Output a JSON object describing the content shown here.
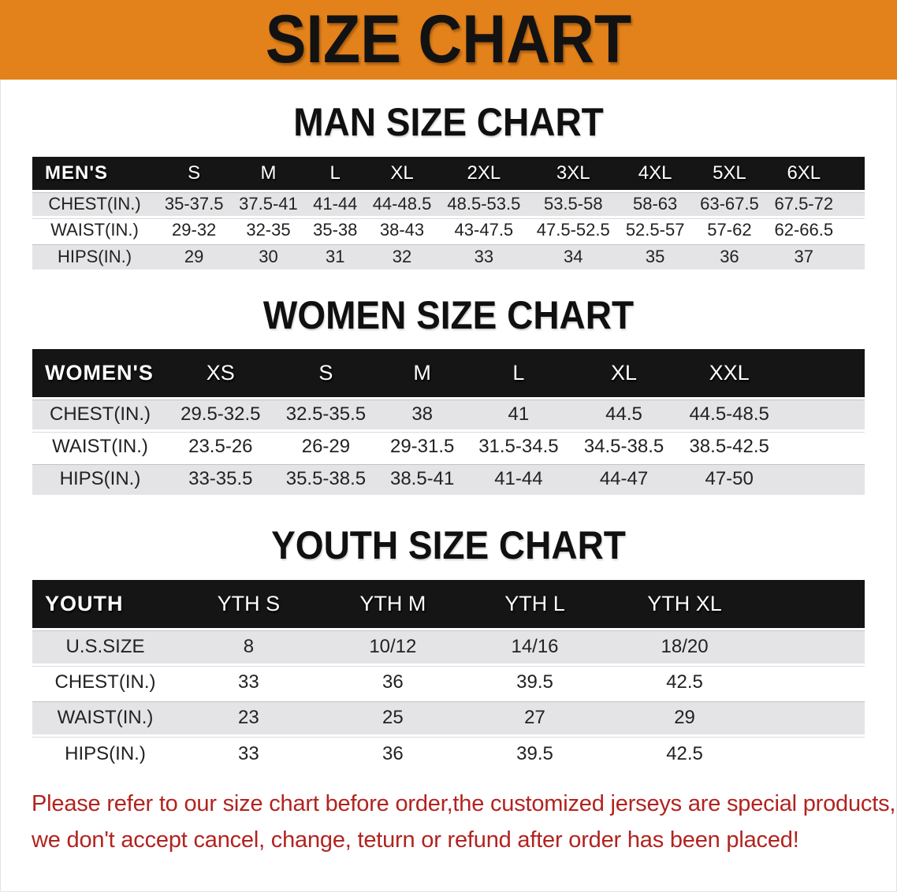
{
  "banner": {
    "title": "SIZE CHART"
  },
  "men": {
    "heading": "MAN SIZE CHART",
    "label": "MEN'S",
    "sizes": [
      "S",
      "M",
      "L",
      "XL",
      "2XL",
      "3XL",
      "4XL",
      "5XL",
      "6XL"
    ],
    "rows": [
      {
        "label": "CHEST(IN.)",
        "cells": [
          "35-37.5",
          "37.5-41",
          "41-44",
          "44-48.5",
          "48.5-53.5",
          "53.5-58",
          "58-63",
          "63-67.5",
          "67.5-72"
        ]
      },
      {
        "label": "WAIST(IN.)",
        "cells": [
          "29-32",
          "32-35",
          "35-38",
          "38-43",
          "43-47.5",
          "47.5-52.5",
          "52.5-57",
          "57-62",
          "62-66.5"
        ]
      },
      {
        "label": "HIPS(IN.)",
        "cells": [
          "29",
          "30",
          "31",
          "32",
          "33",
          "34",
          "35",
          "36",
          "37"
        ]
      }
    ]
  },
  "women": {
    "heading": "WOMEN SIZE CHART",
    "label": "WOMEN'S",
    "sizes": [
      "XS",
      "S",
      "M",
      "L",
      "XL",
      "XXL"
    ],
    "rows": [
      {
        "label": "CHEST(IN.)",
        "cells": [
          "29.5-32.5",
          "32.5-35.5",
          "38",
          "41",
          "44.5",
          "44.5-48.5"
        ]
      },
      {
        "label": "WAIST(IN.)",
        "cells": [
          "23.5-26",
          "26-29",
          "29-31.5",
          "31.5-34.5",
          "34.5-38.5",
          "38.5-42.5"
        ]
      },
      {
        "label": "HIPS(IN.)",
        "cells": [
          "33-35.5",
          "35.5-38.5",
          "38.5-41",
          "41-44",
          "44-47",
          "47-50"
        ]
      }
    ]
  },
  "youth": {
    "heading": "YOUTH SIZE CHART",
    "label": "YOUTH",
    "sizes": [
      "YTH S",
      "YTH M",
      "YTH L",
      "YTH XL"
    ],
    "rows": [
      {
        "label": "U.S.SIZE",
        "cells": [
          "8",
          "10/12",
          "14/16",
          "18/20"
        ]
      },
      {
        "label": "CHEST(IN.)",
        "cells": [
          "33",
          "36",
          "39.5",
          "42.5"
        ]
      },
      {
        "label": "WAIST(IN.)",
        "cells": [
          "23",
          "25",
          "27",
          "29"
        ]
      },
      {
        "label": "HIPS(IN.)",
        "cells": [
          "33",
          "36",
          "39.5",
          "42.5"
        ]
      }
    ]
  },
  "disclaimer": {
    "line1": "Please refer to our size chart before order,the customized jerseys are special products,",
    "line2": "we don't accept cancel, change, teturn or refund after order has been placed!"
  },
  "colors": {
    "banner_orange": "#E3811A",
    "band_black": "#151515",
    "row_gray": "#E4E4E6",
    "disclaimer_red": "#B2231F",
    "title_black": "#121212"
  }
}
